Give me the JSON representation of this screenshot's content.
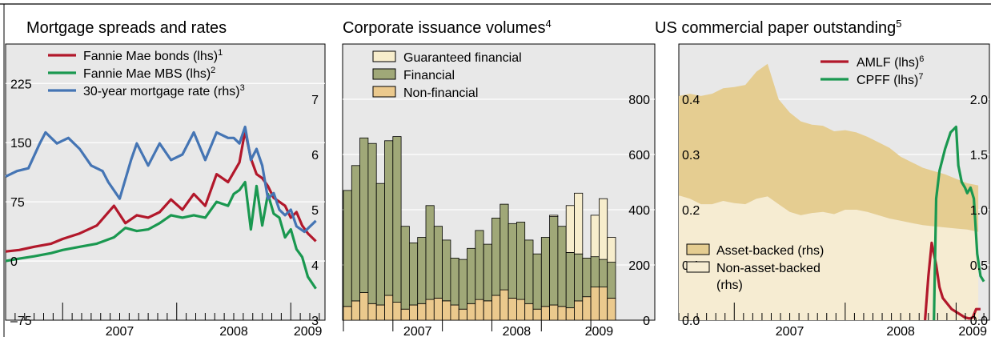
{
  "chart_data": [
    {
      "type": "line",
      "title": "Mortgage spreads and rates",
      "x_axis": {
        "labels": [
          "2007",
          "2008",
          "2009"
        ],
        "range": [
          2006.5,
          2009.3
        ]
      },
      "y_left": {
        "range": [
          -75,
          275
        ],
        "ticks": [
          -75,
          0,
          75,
          150,
          225
        ],
        "tick_labels": [
          "–75",
          "0",
          "75",
          "150",
          "225"
        ]
      },
      "y_right": {
        "range": [
          3,
          8
        ],
        "ticks": [
          3,
          4,
          5,
          6,
          7
        ],
        "tick_labels": [
          "3",
          "4",
          "5",
          "6",
          "7"
        ]
      },
      "legend": {
        "placement": "top-left"
      },
      "series": [
        {
          "name": "Fannie Mae bonds (lhs)",
          "sup": "1",
          "axis": "left",
          "color": "#b2182b",
          "x": [
            2006.5,
            2006.62,
            2006.75,
            2006.9,
            2007.0,
            2007.15,
            2007.3,
            2007.45,
            2007.55,
            2007.65,
            2007.75,
            2007.85,
            2007.95,
            2008.05,
            2008.15,
            2008.25,
            2008.35,
            2008.45,
            2008.55,
            2008.6,
            2008.65,
            2008.7,
            2008.75,
            2008.8,
            2008.85,
            2008.9,
            2008.95,
            2009.0,
            2009.05,
            2009.1,
            2009.15,
            2009.22
          ],
          "y": [
            12,
            14,
            18,
            22,
            28,
            35,
            45,
            70,
            48,
            58,
            55,
            62,
            78,
            65,
            85,
            70,
            110,
            100,
            125,
            165,
            130,
            110,
            105,
            95,
            80,
            75,
            70,
            55,
            62,
            45,
            35,
            25
          ]
        },
        {
          "name": "Fannie Mae MBS (lhs)",
          "sup": "2",
          "axis": "left",
          "color": "#1a9850",
          "x": [
            2006.5,
            2006.62,
            2006.75,
            2006.9,
            2007.0,
            2007.15,
            2007.3,
            2007.45,
            2007.55,
            2007.65,
            2007.75,
            2007.85,
            2007.95,
            2008.05,
            2008.15,
            2008.25,
            2008.35,
            2008.45,
            2008.5,
            2008.55,
            2008.6,
            2008.65,
            2008.7,
            2008.75,
            2008.8,
            2008.85,
            2008.9,
            2008.95,
            2009.0,
            2009.05,
            2009.1,
            2009.15,
            2009.22
          ],
          "y": [
            0,
            3,
            6,
            10,
            14,
            18,
            22,
            30,
            42,
            38,
            40,
            48,
            58,
            55,
            58,
            55,
            75,
            70,
            85,
            90,
            100,
            40,
            95,
            45,
            85,
            60,
            55,
            30,
            40,
            15,
            5,
            -20,
            -35
          ]
        },
        {
          "name": "30-year mortgage rate (rhs)",
          "sup": "3",
          "axis": "right",
          "color": "#4575b4",
          "x": [
            2006.5,
            2006.6,
            2006.7,
            2006.8,
            2006.85,
            2006.9,
            2006.95,
            2007.05,
            2007.15,
            2007.25,
            2007.35,
            2007.4,
            2007.5,
            2007.6,
            2007.65,
            2007.75,
            2007.85,
            2007.95,
            2008.05,
            2008.15,
            2008.25,
            2008.35,
            2008.45,
            2008.5,
            2008.55,
            2008.6,
            2008.65,
            2008.7,
            2008.75,
            2008.8,
            2008.85,
            2008.9,
            2008.95,
            2009.0,
            2009.05,
            2009.12,
            2009.22
          ],
          "y": [
            5.6,
            5.7,
            5.75,
            6.2,
            6.4,
            6.3,
            6.2,
            6.3,
            6.1,
            5.8,
            5.7,
            5.5,
            5.2,
            5.9,
            6.2,
            5.8,
            6.2,
            5.9,
            6.0,
            6.4,
            5.9,
            6.4,
            6.3,
            6.3,
            6.2,
            6.5,
            5.9,
            6.1,
            5.8,
            5.2,
            5.3,
            5.0,
            4.9,
            5.0,
            4.7,
            4.6,
            4.8
          ]
        }
      ]
    },
    {
      "type": "bar",
      "title": "Corporate issuance volumes",
      "title_sup": "4",
      "x_axis": {
        "labels": [
          "2007",
          "2008",
          "2009"
        ]
      },
      "y_right": {
        "range": [
          0,
          1000
        ],
        "ticks": [
          0,
          200,
          400,
          600,
          800
        ],
        "tick_labels": [
          "0",
          "200",
          "400",
          "600",
          "800"
        ]
      },
      "legend": {
        "placement": "top-left"
      },
      "categories": [
        "2006-07",
        "2006-08",
        "2006-09",
        "2006-10",
        "2006-11",
        "2006-12",
        "2007-01",
        "2007-02",
        "2007-03",
        "2007-04",
        "2007-05",
        "2007-06",
        "2007-07",
        "2007-08",
        "2007-09",
        "2007-10",
        "2007-11",
        "2007-12",
        "2008-01",
        "2008-02",
        "2008-03",
        "2008-04",
        "2008-05",
        "2008-06",
        "2008-07",
        "2008-08",
        "2008-09",
        "2008-10",
        "2008-11",
        "2008-12",
        "2009-01",
        "2009-02",
        "2009-03"
      ],
      "series": [
        {
          "name": "Non-financial",
          "color": "#ebc98d",
          "values": [
            50,
            70,
            100,
            60,
            55,
            90,
            65,
            40,
            55,
            60,
            75,
            80,
            70,
            55,
            40,
            60,
            75,
            70,
            90,
            110,
            80,
            75,
            60,
            40,
            50,
            55,
            50,
            45,
            70,
            85,
            120,
            120,
            80
          ]
        },
        {
          "name": "Financial",
          "color": "#a0a878",
          "values": [
            420,
            490,
            560,
            580,
            440,
            560,
            600,
            300,
            225,
            240,
            340,
            260,
            220,
            170,
            180,
            200,
            250,
            205,
            280,
            310,
            270,
            280,
            230,
            200,
            250,
            320,
            290,
            200,
            170,
            140,
            110,
            100,
            130
          ]
        },
        {
          "name": "Guaranteed financial",
          "color": "#f7edcc",
          "values": [
            0,
            0,
            0,
            0,
            0,
            0,
            0,
            0,
            0,
            0,
            0,
            0,
            0,
            0,
            0,
            0,
            0,
            0,
            0,
            0,
            0,
            0,
            0,
            0,
            0,
            5,
            0,
            170,
            220,
            0,
            150,
            220,
            90
          ]
        }
      ]
    },
    {
      "type": "area",
      "title": "US commercial paper outstanding",
      "title_sup": "5",
      "x_axis": {
        "labels": [
          "2007",
          "2008",
          "2009"
        ],
        "range": [
          2006.5,
          2009.3
        ]
      },
      "y_left": {
        "range": [
          0,
          0.5
        ],
        "ticks": [
          0.0,
          0.1,
          0.2,
          0.3,
          0.4
        ],
        "tick_labels": [
          "0.0",
          "0.1",
          "0.2",
          "0.3",
          "0.4"
        ]
      },
      "y_right": {
        "range": [
          0,
          2.5
        ],
        "ticks": [
          0.0,
          0.5,
          1.0,
          1.5,
          2.0
        ],
        "tick_labels": [
          "0.0",
          "0.5",
          "1.0",
          "1.5",
          "2.0"
        ]
      },
      "legend": {
        "placement": "top-right and bottom-left"
      },
      "series": [
        {
          "name": "Asset-backed (rhs)",
          "type": "area",
          "axis": "right",
          "color": "#e5cd91",
          "x": [
            2006.5,
            2006.6,
            2006.7,
            2006.8,
            2006.9,
            2007.0,
            2007.1,
            2007.2,
            2007.3,
            2007.4,
            2007.5,
            2007.6,
            2007.7,
            2007.8,
            2007.9,
            2008.0,
            2008.1,
            2008.2,
            2008.3,
            2008.4,
            2008.5,
            2008.6,
            2008.7,
            2008.8,
            2008.9,
            2009.0,
            2009.1,
            2009.2
          ],
          "y": [
            0.9,
            0.95,
            0.98,
            1.0,
            1.02,
            1.05,
            1.08,
            1.15,
            1.2,
            0.95,
            0.9,
            0.85,
            0.8,
            0.78,
            0.75,
            0.72,
            0.7,
            0.68,
            0.66,
            0.64,
            0.58,
            0.55,
            0.52,
            0.5,
            0.48,
            0.45,
            0.42,
            0.42
          ]
        },
        {
          "name": "Non-asset-backed (rhs)",
          "type": "area",
          "axis": "right",
          "color": "#f6ecd2",
          "x": [
            2006.5,
            2006.6,
            2006.7,
            2006.8,
            2006.9,
            2007.0,
            2007.1,
            2007.2,
            2007.3,
            2007.4,
            2007.5,
            2007.6,
            2007.7,
            2007.8,
            2007.9,
            2008.0,
            2008.1,
            2008.2,
            2008.3,
            2008.4,
            2008.5,
            2008.6,
            2008.7,
            2008.8,
            2008.9,
            2009.0,
            2009.1,
            2009.2
          ],
          "y": [
            1.13,
            1.1,
            1.05,
            1.05,
            1.08,
            1.06,
            1.05,
            1.1,
            1.12,
            1.05,
            0.98,
            0.95,
            0.97,
            0.98,
            0.96,
            1.0,
            1.0,
            0.98,
            0.95,
            0.92,
            0.9,
            0.88,
            0.86,
            0.85,
            0.84,
            0.83,
            0.82,
            0.8
          ]
        },
        {
          "name": "AMLF (lhs)",
          "sup": "6",
          "type": "line",
          "axis": "left",
          "color": "#b2182b",
          "x": [
            2008.72,
            2008.75,
            2008.78,
            2008.82,
            2008.85,
            2008.88,
            2008.92,
            2008.96,
            2009.0,
            2009.04,
            2009.08,
            2009.12,
            2009.15,
            2009.18,
            2009.22
          ],
          "y": [
            0.0,
            0.08,
            0.14,
            0.1,
            0.06,
            0.04,
            0.03,
            0.02,
            0.015,
            0.01,
            0.005,
            0.003,
            0.005,
            0.02,
            0.02
          ]
        },
        {
          "name": "CPFF (lhs)",
          "sup": "7",
          "type": "line",
          "axis": "left",
          "color": "#1a9850",
          "x": [
            2008.8,
            2008.82,
            2008.85,
            2008.9,
            2008.95,
            2009.0,
            2009.02,
            2009.05,
            2009.08,
            2009.1,
            2009.13,
            2009.16,
            2009.19,
            2009.22,
            2009.25
          ],
          "y": [
            0.0,
            0.22,
            0.27,
            0.31,
            0.34,
            0.35,
            0.28,
            0.25,
            0.24,
            0.23,
            0.24,
            0.22,
            0.12,
            0.08,
            0.07
          ]
        }
      ]
    }
  ]
}
